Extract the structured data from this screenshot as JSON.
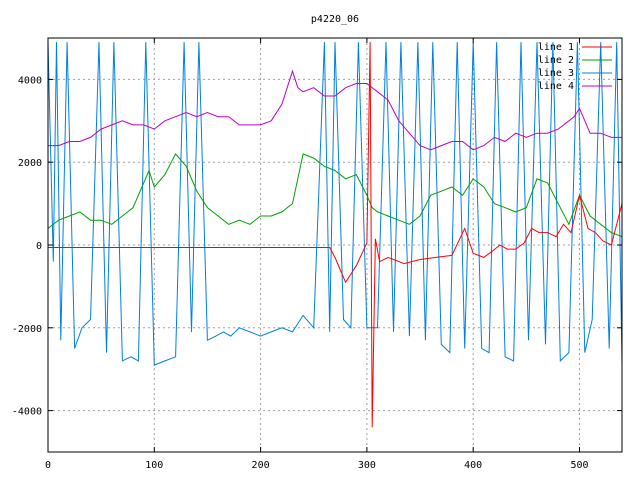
{
  "chart_data": {
    "type": "line",
    "title": "p4220_06",
    "xlabel": "",
    "ylabel": "",
    "xlim": [
      0,
      540
    ],
    "ylim": [
      -5000,
      5000
    ],
    "xticks": [
      0,
      100,
      200,
      300,
      400,
      500
    ],
    "yticks": [
      -4000,
      -2000,
      0,
      2000,
      4000
    ],
    "grid": true,
    "legend_position": "top-right",
    "series": [
      {
        "name": "line 1",
        "color": "#ff0000",
        "x": [
          0,
          100,
          200,
          265,
          270,
          280,
          290,
          300,
          303,
          305,
          308,
          312,
          320,
          335,
          350,
          365,
          380,
          392,
          400,
          410,
          418,
          425,
          432,
          440,
          448,
          455,
          462,
          470,
          478,
          485,
          492,
          500,
          508,
          515,
          522,
          530,
          540
        ],
        "values": [
          -60,
          -60,
          -60,
          -60,
          -300,
          -900,
          -500,
          50,
          4900,
          -4400,
          150,
          -400,
          -300,
          -450,
          -350,
          -300,
          -250,
          400,
          -200,
          -300,
          -150,
          0,
          -100,
          -100,
          50,
          400,
          300,
          300,
          200,
          500,
          300,
          1200,
          400,
          300,
          100,
          0,
          1000
        ]
      },
      {
        "name": "line 2",
        "color": "#00a000",
        "x": [
          0,
          10,
          20,
          30,
          40,
          50,
          60,
          70,
          80,
          90,
          95,
          100,
          110,
          120,
          130,
          140,
          150,
          160,
          170,
          180,
          190,
          200,
          210,
          220,
          230,
          240,
          250,
          260,
          270,
          280,
          290,
          300,
          305,
          310,
          320,
          330,
          340,
          350,
          360,
          370,
          380,
          390,
          400,
          410,
          420,
          430,
          440,
          450,
          460,
          470,
          480,
          490,
          500,
          510,
          520,
          530,
          540
        ],
        "values": [
          400,
          600,
          700,
          800,
          600,
          600,
          500,
          700,
          900,
          1500,
          1800,
          1400,
          1700,
          2200,
          1900,
          1300,
          900,
          700,
          500,
          600,
          500,
          700,
          700,
          800,
          1000,
          2200,
          2100,
          1900,
          1800,
          1600,
          1700,
          1200,
          900,
          800,
          700,
          600,
          500,
          700,
          1200,
          1300,
          1400,
          1200,
          1600,
          1400,
          1000,
          900,
          800,
          900,
          1600,
          1500,
          1000,
          500,
          1200,
          700,
          500,
          300,
          200
        ]
      },
      {
        "name": "line 3",
        "color": "#0080e0",
        "x": [
          0,
          5,
          8,
          12,
          18,
          25,
          32,
          40,
          48,
          55,
          62,
          70,
          78,
          85,
          92,
          100,
          110,
          120,
          128,
          135,
          142,
          150,
          158,
          165,
          172,
          180,
          190,
          200,
          210,
          220,
          230,
          240,
          250,
          260,
          265,
          270,
          278,
          285,
          292,
          300,
          305,
          310,
          318,
          325,
          332,
          340,
          348,
          355,
          362,
          370,
          378,
          385,
          392,
          400,
          408,
          415,
          422,
          430,
          438,
          445,
          452,
          460,
          468,
          475,
          482,
          490,
          498,
          505,
          512,
          520,
          528,
          535,
          540
        ],
        "values": [
          4900,
          -400,
          4900,
          -2300,
          4900,
          -2500,
          -2000,
          -1800,
          4900,
          -2600,
          4900,
          -2800,
          -2700,
          -2800,
          4900,
          -2900,
          -2800,
          -2700,
          4900,
          -2100,
          4900,
          -2300,
          -2200,
          -2100,
          -2200,
          -2000,
          -2100,
          -2200,
          -2100,
          -2000,
          -2100,
          -1700,
          -2000,
          4900,
          -2100,
          4900,
          -1800,
          -2000,
          4900,
          -2000,
          -2000,
          -2000,
          4900,
          -2100,
          4900,
          -2200,
          4900,
          -2300,
          4900,
          -2400,
          -2600,
          4900,
          -2500,
          4900,
          -2500,
          -2600,
          4900,
          -2700,
          -2800,
          4900,
          -2300,
          4900,
          -2400,
          4900,
          -2800,
          -2600,
          4900,
          -2600,
          -1800,
          4900,
          -2500,
          4900,
          -2900
        ]
      },
      {
        "name": "line 4",
        "color": "#c000c0",
        "x": [
          0,
          10,
          20,
          30,
          40,
          50,
          60,
          70,
          80,
          90,
          100,
          110,
          120,
          130,
          140,
          150,
          160,
          170,
          180,
          190,
          200,
          210,
          220,
          225,
          230,
          235,
          240,
          250,
          260,
          270,
          280,
          290,
          300,
          310,
          320,
          330,
          340,
          350,
          360,
          370,
          380,
          390,
          400,
          410,
          420,
          430,
          440,
          450,
          460,
          470,
          480,
          490,
          495,
          500,
          505,
          510,
          520,
          530,
          540
        ],
        "values": [
          2400,
          2400,
          2500,
          2500,
          2600,
          2800,
          2900,
          3000,
          2900,
          2900,
          2800,
          3000,
          3100,
          3200,
          3100,
          3200,
          3100,
          3100,
          2900,
          2900,
          2900,
          3000,
          3400,
          3800,
          4200,
          3800,
          3700,
          3800,
          3600,
          3600,
          3800,
          3900,
          3900,
          3700,
          3500,
          3000,
          2700,
          2400,
          2300,
          2400,
          2500,
          2500,
          2300,
          2400,
          2600,
          2500,
          2700,
          2600,
          2700,
          2700,
          2800,
          3000,
          3100,
          3300,
          3000,
          2700,
          2700,
          2600,
          2600
        ]
      }
    ]
  }
}
